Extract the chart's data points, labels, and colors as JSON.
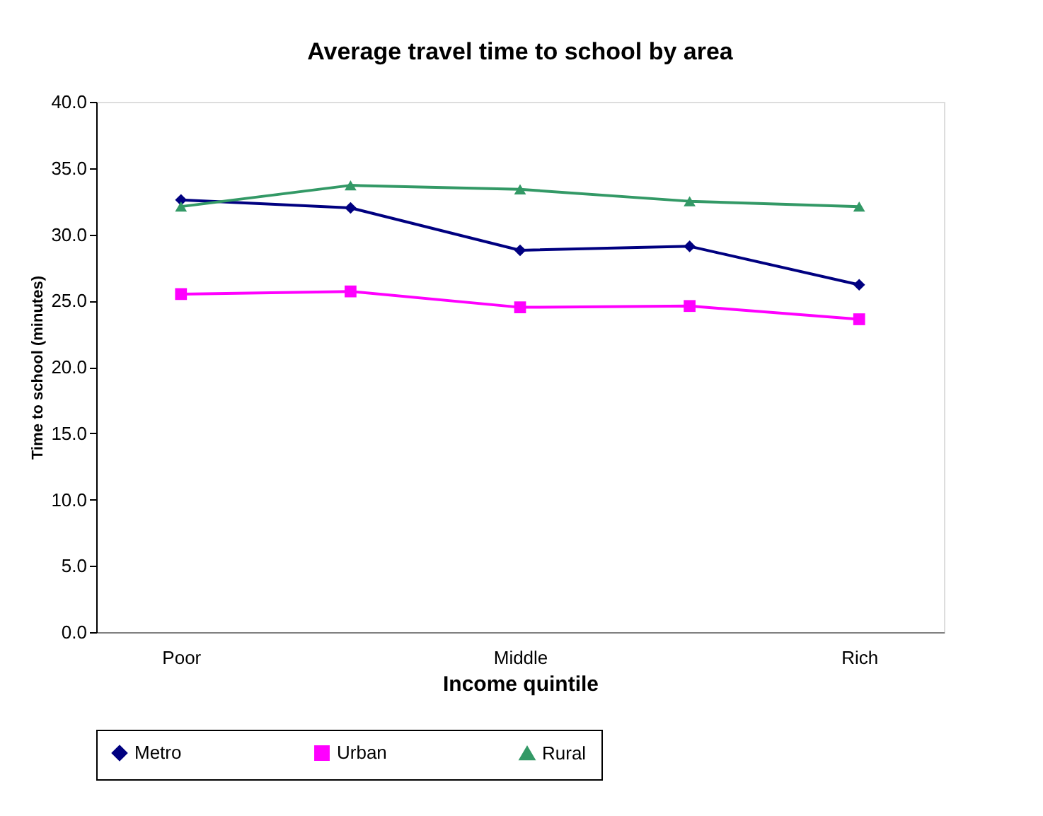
{
  "chart_data": {
    "type": "line",
    "title": "Average travel time to school by area",
    "xlabel": "Income quintile",
    "ylabel": "Time to school (minutes)",
    "categories": [
      "Poor",
      null,
      "Middle",
      null,
      "Rich"
    ],
    "series": [
      {
        "name": "Metro",
        "color": "#000080",
        "marker": "diamond",
        "values": [
          32.6,
          32.0,
          28.8,
          29.1,
          26.2
        ]
      },
      {
        "name": "Urban",
        "color": "#ff00ff",
        "marker": "square",
        "values": [
          25.5,
          25.7,
          24.5,
          24.6,
          23.6
        ]
      },
      {
        "name": "Rural",
        "color": "#339966",
        "marker": "triangle",
        "values": [
          32.1,
          33.7,
          33.4,
          32.5,
          32.1
        ]
      }
    ],
    "ylim": [
      0,
      40
    ],
    "yticks": [
      {
        "value": 0,
        "label": "0.0"
      },
      {
        "value": 5,
        "label": "5.0"
      },
      {
        "value": 10,
        "label": "10.0"
      },
      {
        "value": 15,
        "label": "15.0"
      },
      {
        "value": 20,
        "label": "20.0"
      },
      {
        "value": 25,
        "label": "25.0"
      },
      {
        "value": 30,
        "label": "30.0"
      },
      {
        "value": 35,
        "label": "35.0"
      },
      {
        "value": 40,
        "label": "40.0"
      }
    ],
    "grid": false,
    "legend": "bottom"
  }
}
